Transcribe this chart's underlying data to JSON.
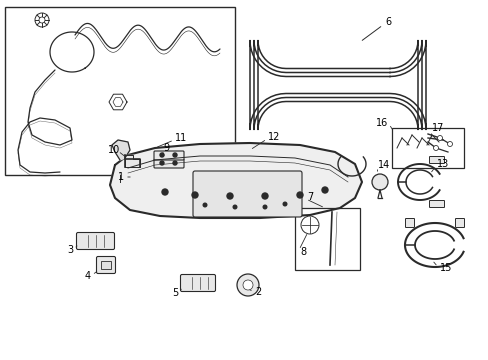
{
  "bg_color": "#ffffff",
  "line_color": "#2a2a2a",
  "label_color": "#000000",
  "lw_main": 1.1,
  "lw_thin": 0.7,
  "label_fs": 7.0
}
